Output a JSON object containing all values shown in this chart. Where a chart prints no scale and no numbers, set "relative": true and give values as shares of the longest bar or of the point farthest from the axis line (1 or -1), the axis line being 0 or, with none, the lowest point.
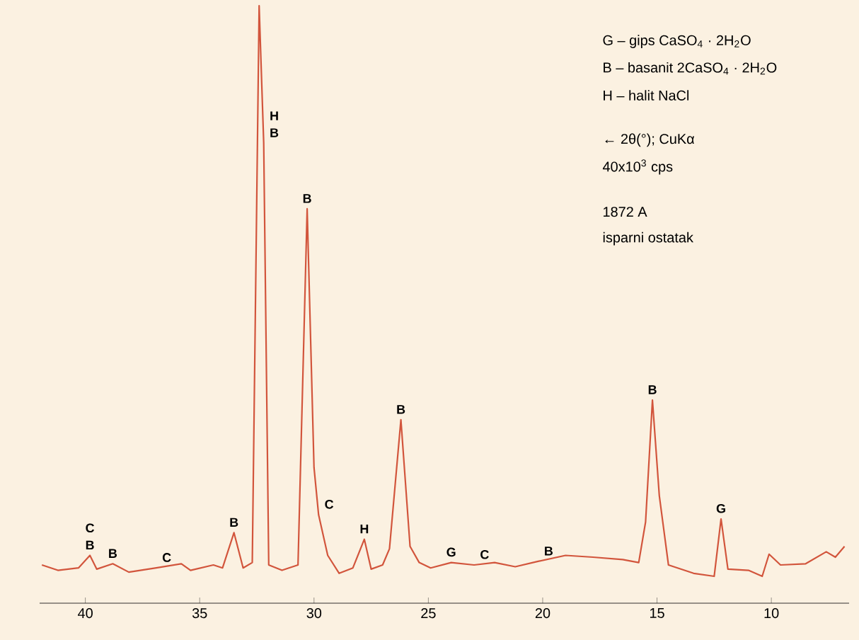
{
  "chart_data": {
    "type": "line",
    "relative": true,
    "xlim": [
      42,
      6.6
    ],
    "xticks": [
      40,
      35,
      30,
      25,
      20,
      15,
      10
    ],
    "series": [
      {
        "color": "#d2553c",
        "x": [
          41.9,
          41.2,
          40.3,
          39.8,
          39.5,
          38.8,
          38.1,
          36.9,
          35.8,
          35.4,
          34.4,
          34.0,
          33.5,
          33.1,
          32.7,
          32.4,
          32.2,
          31.98,
          31.4,
          30.7,
          30.3,
          30.0,
          29.8,
          29.4,
          28.9,
          28.3,
          27.8,
          27.5,
          27.0,
          26.7,
          26.2,
          25.8,
          25.4,
          24.9,
          24.0,
          23.0,
          22.1,
          21.2,
          20.2,
          19.0,
          17.8,
          16.5,
          15.8,
          15.5,
          15.2,
          14.9,
          14.5,
          13.4,
          12.5,
          12.2,
          11.9,
          11.0,
          10.4,
          10.1,
          9.6,
          8.5,
          7.6,
          7.2,
          6.8
        ],
        "values": [
          0.064,
          0.055,
          0.059,
          0.08,
          0.057,
          0.066,
          0.052,
          0.059,
          0.066,
          0.055,
          0.064,
          0.059,
          0.118,
          0.059,
          0.068,
          1.0,
          0.77,
          0.064,
          0.055,
          0.064,
          0.66,
          0.227,
          0.148,
          0.08,
          0.05,
          0.059,
          0.107,
          0.057,
          0.064,
          0.091,
          0.307,
          0.095,
          0.068,
          0.059,
          0.068,
          0.064,
          0.068,
          0.061,
          0.07,
          0.08,
          0.077,
          0.073,
          0.068,
          0.136,
          0.34,
          0.18,
          0.064,
          0.05,
          0.045,
          0.141,
          0.057,
          0.055,
          0.045,
          0.082,
          0.064,
          0.066,
          0.086,
          0.077,
          0.095
        ]
      }
    ],
    "annotations": [
      "G – gips CaSO$_{4}$ · 2H$_{2}$O",
      "B – basanit 2CaSO$_{4}$ · 2H$_{2}$O",
      "H – halit NaCl",
      "← 2θ(°); CuKα",
      "40x10$^{3}$ cps",
      "1872 A",
      "isparni ostatak",
      {
        "text": "C",
        "x": 39.8,
        "y": 0.08
      },
      {
        "text": "B",
        "x": 39.8,
        "y": 0.08
      },
      {
        "text": "B",
        "x": 38.8,
        "y": 0.066
      },
      {
        "text": "C",
        "x": 36.9,
        "y": 0.059
      },
      {
        "text": "B",
        "x": 33.5,
        "y": 0.118
      },
      {
        "text": "H",
        "x": 32.2,
        "y": 0.77
      },
      {
        "text": "B",
        "x": 32.2,
        "y": 0.77
      },
      {
        "text": "B",
        "x": 30.3,
        "y": 0.66
      },
      {
        "text": "C",
        "x": 29.8,
        "y": 0.148
      },
      {
        "text": "H",
        "x": 27.8,
        "y": 0.107
      },
      {
        "text": "B",
        "x": 26.2,
        "y": 0.307
      },
      {
        "text": "G",
        "x": 24.0,
        "y": 0.068
      },
      {
        "text": "C",
        "x": 23.0,
        "y": 0.064
      },
      {
        "text": "B",
        "x": 20.2,
        "y": 0.07
      },
      {
        "text": "B",
        "x": 15.2,
        "y": 0.34
      },
      {
        "text": "G",
        "x": 12.2,
        "y": 0.141
      }
    ]
  }
}
